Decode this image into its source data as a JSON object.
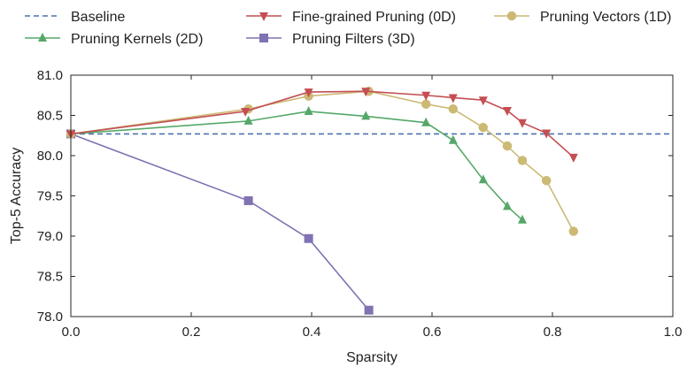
{
  "chart_data": {
    "type": "line",
    "title": "",
    "xlabel": "Sparsity",
    "ylabel": "Top-5 Accuracy",
    "xlim": [
      0.0,
      1.0
    ],
    "ylim": [
      78.0,
      81.0
    ],
    "x_ticks": [
      "0.0",
      "0.2",
      "0.4",
      "0.6",
      "0.8",
      "1.0"
    ],
    "y_ticks": [
      "78.0",
      "78.5",
      "79.0",
      "79.5",
      "80.0",
      "80.5",
      "81.0"
    ],
    "grid": false,
    "legend_position": "top, outside plot",
    "series": [
      {
        "name": "Baseline",
        "style": "dashed",
        "marker": "none",
        "color": "#4c72b0",
        "points": [
          [
            0.0,
            80.27
          ],
          [
            1.0,
            80.27
          ]
        ]
      },
      {
        "name": "Fine-grained Pruning (0D)",
        "style": "solid",
        "marker": "triangle-down",
        "color": "#c44e52",
        "points": [
          [
            0.0,
            80.27
          ],
          [
            0.29,
            80.55
          ],
          [
            0.395,
            80.79
          ],
          [
            0.49,
            80.8
          ],
          [
            0.59,
            80.75
          ],
          [
            0.635,
            80.72
          ],
          [
            0.685,
            80.69
          ],
          [
            0.725,
            80.56
          ],
          [
            0.75,
            80.41
          ],
          [
            0.79,
            80.28
          ],
          [
            0.835,
            79.98
          ]
        ]
      },
      {
        "name": "Pruning Vectors (1D)",
        "style": "solid",
        "marker": "circle",
        "color": "#ccb974",
        "points": [
          [
            0.0,
            80.27
          ],
          [
            0.295,
            80.58
          ],
          [
            0.395,
            80.74
          ],
          [
            0.495,
            80.8
          ],
          [
            0.59,
            80.64
          ],
          [
            0.635,
            80.58
          ],
          [
            0.685,
            80.35
          ],
          [
            0.725,
            80.12
          ],
          [
            0.75,
            79.94
          ],
          [
            0.79,
            79.69
          ],
          [
            0.835,
            79.06
          ]
        ]
      },
      {
        "name": "Pruning Kernels (2D)",
        "style": "solid",
        "marker": "triangle-up",
        "color": "#55a868",
        "points": [
          [
            0.0,
            80.27
          ],
          [
            0.295,
            80.43
          ],
          [
            0.395,
            80.55
          ],
          [
            0.49,
            80.49
          ],
          [
            0.59,
            80.41
          ],
          [
            0.635,
            80.19
          ],
          [
            0.685,
            79.7
          ],
          [
            0.725,
            79.37
          ],
          [
            0.75,
            79.2
          ]
        ]
      },
      {
        "name": "Pruning Filters (3D)",
        "style": "solid",
        "marker": "square",
        "color": "#8172b2",
        "points": [
          [
            0.0,
            80.27
          ],
          [
            0.295,
            79.44
          ],
          [
            0.395,
            78.97
          ],
          [
            0.495,
            78.08
          ]
        ]
      }
    ]
  }
}
